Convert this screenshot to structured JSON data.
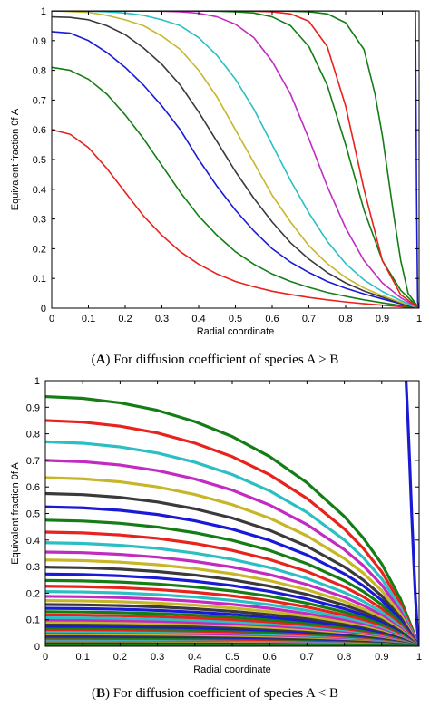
{
  "chart_data": [
    {
      "type": "line",
      "panel_letter": "A",
      "caption_text": "For diffusion coefficient of species A ≥ B",
      "xlabel": "Radial coordinate",
      "ylabel": "Equivalent fraction 0f A",
      "xlim": [
        0,
        1
      ],
      "ylim": [
        0,
        1
      ],
      "xticks": [
        "0",
        "0.1",
        "0.2",
        "0.3",
        "0.4",
        "0.5",
        "0.6",
        "0.7",
        "0.8",
        "0.9",
        "1"
      ],
      "yticks": [
        "0",
        "0.1",
        "0.2",
        "0.3",
        "0.4",
        "0.5",
        "0.6",
        "0.7",
        "0.8",
        "0.9",
        "1"
      ],
      "grid": false,
      "legend": "none",
      "series": [
        {
          "color": "#e8221c",
          "x": [
            0,
            0.05,
            0.1,
            0.15,
            0.2,
            0.25,
            0.3,
            0.35,
            0.4,
            0.45,
            0.5,
            0.55,
            0.6,
            0.65,
            0.7,
            0.75,
            0.8,
            0.85,
            0.9,
            0.95,
            1
          ],
          "y": [
            0.6,
            0.585,
            0.54,
            0.47,
            0.39,
            0.31,
            0.245,
            0.19,
            0.148,
            0.115,
            0.09,
            0.072,
            0.057,
            0.046,
            0.036,
            0.028,
            0.021,
            0.015,
            0.01,
            0.005,
            0
          ]
        },
        {
          "color": "#157d15",
          "x": [
            0,
            0.05,
            0.1,
            0.15,
            0.2,
            0.25,
            0.3,
            0.35,
            0.4,
            0.45,
            0.5,
            0.55,
            0.6,
            0.65,
            0.7,
            0.75,
            0.8,
            0.85,
            0.9,
            0.95,
            1
          ],
          "y": [
            0.81,
            0.8,
            0.77,
            0.72,
            0.65,
            0.57,
            0.48,
            0.39,
            0.31,
            0.245,
            0.19,
            0.148,
            0.115,
            0.09,
            0.07,
            0.053,
            0.04,
            0.028,
            0.018,
            0.009,
            0
          ]
        },
        {
          "color": "#1a1ad6",
          "x": [
            0,
            0.05,
            0.1,
            0.15,
            0.2,
            0.25,
            0.3,
            0.35,
            0.4,
            0.45,
            0.5,
            0.55,
            0.6,
            0.65,
            0.7,
            0.75,
            0.8,
            0.85,
            0.9,
            0.95,
            1
          ],
          "y": [
            0.93,
            0.925,
            0.9,
            0.86,
            0.81,
            0.75,
            0.68,
            0.6,
            0.5,
            0.41,
            0.33,
            0.26,
            0.2,
            0.155,
            0.12,
            0.09,
            0.067,
            0.048,
            0.031,
            0.015,
            0
          ]
        },
        {
          "color": "#3a3a3a",
          "x": [
            0,
            0.05,
            0.1,
            0.15,
            0.2,
            0.25,
            0.3,
            0.35,
            0.4,
            0.45,
            0.5,
            0.55,
            0.6,
            0.65,
            0.7,
            0.75,
            0.8,
            0.85,
            0.9,
            0.95,
            1
          ],
          "y": [
            0.98,
            0.978,
            0.97,
            0.95,
            0.92,
            0.875,
            0.82,
            0.75,
            0.66,
            0.56,
            0.46,
            0.37,
            0.29,
            0.22,
            0.165,
            0.12,
            0.085,
            0.058,
            0.037,
            0.018,
            0
          ]
        },
        {
          "color": "#c8b62a",
          "x": [
            0,
            0.05,
            0.1,
            0.15,
            0.2,
            0.25,
            0.3,
            0.35,
            0.4,
            0.45,
            0.5,
            0.55,
            0.6,
            0.65,
            0.7,
            0.75,
            0.8,
            0.85,
            0.9,
            0.95,
            1
          ],
          "y": [
            1.0,
            0.998,
            0.995,
            0.985,
            0.97,
            0.95,
            0.915,
            0.87,
            0.8,
            0.71,
            0.6,
            0.49,
            0.38,
            0.29,
            0.21,
            0.15,
            0.103,
            0.068,
            0.042,
            0.02,
            0
          ]
        },
        {
          "color": "#2bbfc4",
          "x": [
            0,
            0.05,
            0.1,
            0.15,
            0.2,
            0.25,
            0.3,
            0.35,
            0.4,
            0.45,
            0.5,
            0.55,
            0.6,
            0.65,
            0.7,
            0.75,
            0.8,
            0.85,
            0.9,
            0.95,
            1
          ],
          "y": [
            1.0,
            1.0,
            0.999,
            0.997,
            0.993,
            0.985,
            0.97,
            0.95,
            0.91,
            0.85,
            0.77,
            0.67,
            0.55,
            0.43,
            0.32,
            0.225,
            0.15,
            0.095,
            0.056,
            0.026,
            0
          ]
        },
        {
          "color": "#c22bc2",
          "x": [
            0,
            0.1,
            0.2,
            0.3,
            0.35,
            0.4,
            0.45,
            0.5,
            0.55,
            0.6,
            0.65,
            0.7,
            0.75,
            0.8,
            0.85,
            0.9,
            0.95,
            1
          ],
          "y": [
            1.0,
            1.0,
            1.0,
            0.999,
            0.997,
            0.992,
            0.98,
            0.955,
            0.91,
            0.83,
            0.72,
            0.57,
            0.41,
            0.27,
            0.16,
            0.085,
            0.035,
            0
          ]
        },
        {
          "color": "#157d15",
          "x": [
            0,
            0.1,
            0.2,
            0.3,
            0.4,
            0.45,
            0.5,
            0.55,
            0.6,
            0.65,
            0.7,
            0.75,
            0.8,
            0.85,
            0.9,
            0.95,
            1
          ],
          "y": [
            1.0,
            1.0,
            1.0,
            1.0,
            1.0,
            0.999,
            0.997,
            0.993,
            0.98,
            0.95,
            0.88,
            0.75,
            0.55,
            0.33,
            0.16,
            0.06,
            0
          ]
        },
        {
          "color": "#e8221c",
          "x": [
            0,
            0.1,
            0.2,
            0.3,
            0.4,
            0.5,
            0.55,
            0.6,
            0.65,
            0.7,
            0.75,
            0.8,
            0.85,
            0.9,
            0.95,
            1
          ],
          "y": [
            1.0,
            1.0,
            1.0,
            1.0,
            1.0,
            1.0,
            0.999,
            0.997,
            0.99,
            0.965,
            0.88,
            0.68,
            0.4,
            0.16,
            0.045,
            0
          ]
        },
        {
          "color": "#157d15",
          "x": [
            0,
            0.1,
            0.2,
            0.3,
            0.4,
            0.5,
            0.6,
            0.65,
            0.7,
            0.75,
            0.8,
            0.85,
            0.88,
            0.9,
            0.93,
            0.95,
            0.97,
            1
          ],
          "y": [
            1.0,
            1.0,
            1.0,
            1.0,
            1.0,
            1.0,
            1.0,
            0.999,
            0.997,
            0.99,
            0.96,
            0.87,
            0.72,
            0.58,
            0.32,
            0.16,
            0.05,
            0
          ]
        },
        {
          "color": "#1a1ad6",
          "x": [
            0,
            0.5,
            0.99,
            0.993,
            0.996,
            1
          ],
          "y": [
            1.0,
            1.0,
            1.0,
            0.4,
            0.02,
            0
          ]
        }
      ]
    },
    {
      "type": "line",
      "panel_letter": "B",
      "caption_text": "For diffusion coefficient of species A < B",
      "xlabel": "Radial coordinate",
      "ylabel": "Equivalent fraction 0f A",
      "xlim": [
        0,
        1
      ],
      "ylim": [
        0,
        1
      ],
      "xticks": [
        "0",
        "0.1",
        "0.2",
        "0.3",
        "0.4",
        "0.5",
        "0.6",
        "0.7",
        "0.8",
        "0.9",
        "1"
      ],
      "yticks": [
        "0",
        "0.1",
        "0.2",
        "0.3",
        "0.4",
        "0.5",
        "0.6",
        "0.7",
        "0.8",
        "0.9",
        "1"
      ],
      "grid": false,
      "legend": "none",
      "profile_shape": {
        "x": [
          0,
          0.1,
          0.2,
          0.3,
          0.4,
          0.5,
          0.6,
          0.7,
          0.8,
          0.85,
          0.9,
          0.95,
          1
        ],
        "fraction_of_center": [
          1,
          0.993,
          0.975,
          0.945,
          0.9,
          0.84,
          0.76,
          0.655,
          0.52,
          0.435,
          0.33,
          0.19,
          0
        ]
      },
      "palette": [
        "#157d15",
        "#e8221c",
        "#2bbfc4",
        "#c22bc2",
        "#c8b62a",
        "#3a3a3a",
        "#1a1ad6"
      ],
      "center_values": [
        0.94,
        0.85,
        0.77,
        0.7,
        0.635,
        0.575,
        0.525,
        0.475,
        0.43,
        0.39,
        0.355,
        0.325,
        0.298,
        0.272,
        0.248,
        0.226,
        0.206,
        0.188,
        0.172,
        0.157,
        0.143,
        0.13,
        0.118,
        0.107,
        0.097,
        0.088,
        0.08,
        0.072,
        0.065,
        0.058,
        0.052,
        0.046,
        0.041,
        0.036,
        0.031,
        0.027,
        0.023,
        0.019,
        0.016,
        0.013,
        0.01,
        0.007,
        0.004
      ],
      "steep_series": {
        "color": "#1a1ad6",
        "x": [
          0.965,
          0.97,
          0.975,
          0.98,
          0.985,
          0.99,
          0.995,
          1
        ],
        "y": [
          1.0,
          0.85,
          0.68,
          0.5,
          0.34,
          0.19,
          0.07,
          0
        ]
      }
    }
  ]
}
